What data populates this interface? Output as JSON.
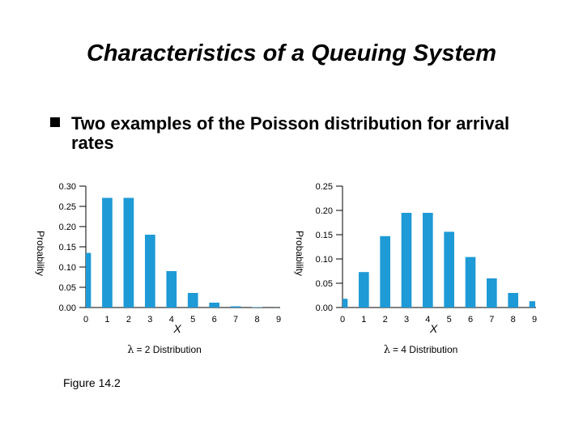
{
  "slide": {
    "title": "Characteristics of a Queuing System",
    "bullet": "Two examples of the Poisson distribution for arrival rates",
    "caption": "Figure 14.2"
  },
  "colors": {
    "bar": "#1e9ad6",
    "axis": "#000000"
  },
  "chart_data": [
    {
      "type": "bar",
      "title": "",
      "categories": [
        "0",
        "1",
        "2",
        "3",
        "4",
        "5",
        "6",
        "7",
        "8",
        "9"
      ],
      "values": [
        0.135,
        0.271,
        0.271,
        0.18,
        0.09,
        0.036,
        0.012,
        0.003,
        0.001,
        0.0002
      ],
      "xlabel": "X",
      "ylabel": "Probability",
      "ylim": [
        0,
        0.3
      ],
      "yticks": [
        "0.00",
        "0.05",
        "0.10",
        "0.15",
        "0.20",
        "0.25",
        "0.30"
      ],
      "subtitle_symbol": "λ",
      "subtitle": "= 2 Distribution"
    },
    {
      "type": "bar",
      "title": "",
      "categories": [
        "0",
        "1",
        "2",
        "3",
        "4",
        "5",
        "6",
        "7",
        "8",
        "9"
      ],
      "values": [
        0.018,
        0.073,
        0.147,
        0.195,
        0.195,
        0.156,
        0.104,
        0.06,
        0.03,
        0.013
      ],
      "xlabel": "X",
      "ylabel": "Probability",
      "ylim": [
        0,
        0.25
      ],
      "yticks": [
        "0.00",
        "0.05",
        "0.10",
        "0.15",
        "0.20",
        "0.25"
      ],
      "subtitle_symbol": "λ",
      "subtitle": "= 4 Distribution"
    }
  ]
}
